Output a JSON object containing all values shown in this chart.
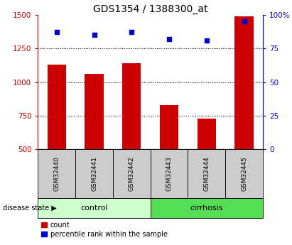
{
  "title": "GDS1354 / 1388300_at",
  "samples": [
    "GSM32440",
    "GSM32441",
    "GSM32442",
    "GSM32443",
    "GSM32444",
    "GSM32445"
  ],
  "counts": [
    1130,
    1060,
    1140,
    830,
    730,
    1490
  ],
  "percentiles": [
    87,
    85,
    87,
    82,
    81,
    95
  ],
  "ylim_left": [
    500,
    1500
  ],
  "ylim_right": [
    0,
    100
  ],
  "yticks_left": [
    500,
    750,
    1000,
    1250,
    1500
  ],
  "yticks_right": [
    0,
    25,
    50,
    75,
    100
  ],
  "bar_color": "#cc0000",
  "scatter_color": "#0000cc",
  "control_color": "#ccffcc",
  "cirrhosis_color": "#55dd55",
  "sample_box_color": "#cccccc",
  "disease_state_label": "disease state",
  "control_label": "control",
  "cirrhosis_label": "cirrhosis",
  "legend_count": "count",
  "legend_percentile": "percentile rank within the sample",
  "title_fontsize": 10,
  "tick_fontsize": 7.5,
  "sample_fontsize": 6.5,
  "disease_fontsize": 8,
  "legend_fontsize": 7
}
